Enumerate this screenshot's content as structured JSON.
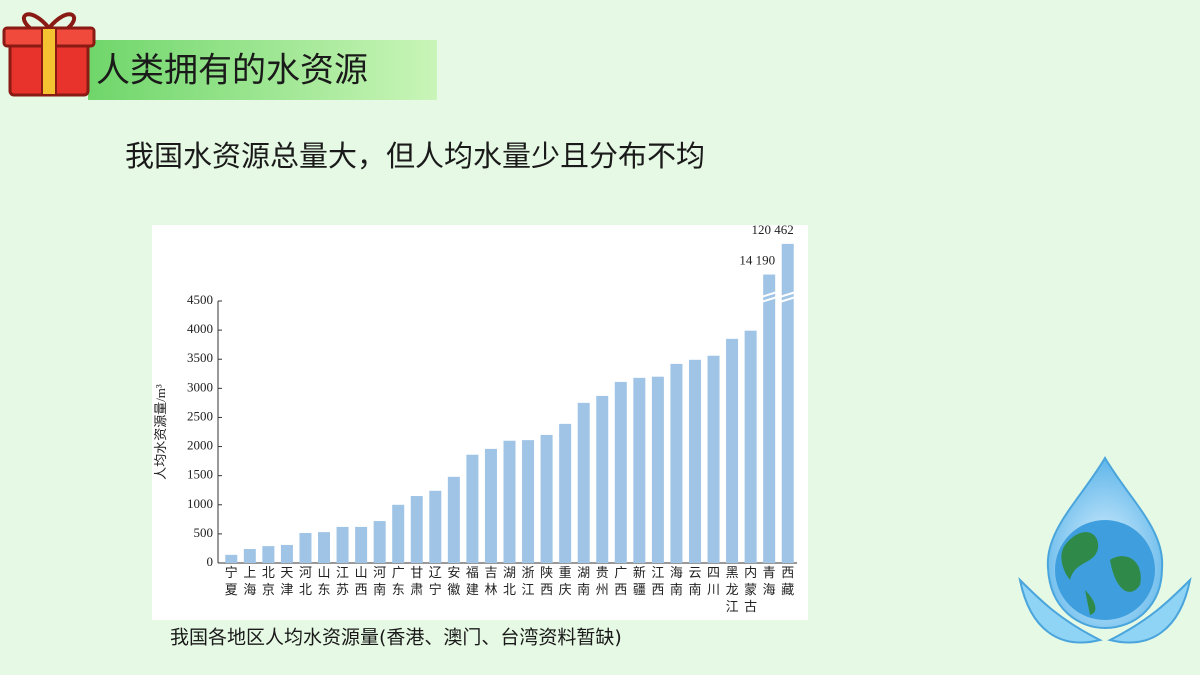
{
  "slide": {
    "title": "人类拥有的水资源",
    "subtitle": "我国水资源总量大，但人均水量少且分布不均",
    "caption": "我国各地区人均水资源量(香港、澳门、台湾资料暂缺)"
  },
  "chart_data": {
    "type": "bar",
    "y_label": "人均水资源量/m³",
    "color": "#9fc4e6",
    "categories": [
      "宁夏",
      "上海",
      "北京",
      "天津",
      "河北",
      "山东",
      "江苏",
      "山西",
      "河南",
      "广东",
      "甘肃",
      "辽宁",
      "安徽",
      "福建",
      "吉林",
      "湖北",
      "浙江",
      "陕西",
      "重庆",
      "湖南",
      "贵州",
      "广西",
      "新疆",
      "江西",
      "海南",
      "云南",
      "四川",
      "黑龙江",
      "内蒙古",
      "青海",
      "西藏"
    ],
    "values": [
      140,
      240,
      290,
      310,
      515,
      530,
      620,
      620,
      720,
      1000,
      1150,
      1240,
      1480,
      1860,
      1960,
      2100,
      2110,
      2200,
      2390,
      2750,
      2870,
      3110,
      3180,
      3200,
      3420,
      3490,
      3560,
      3850,
      3990,
      14190,
      120462
    ],
    "value_labels": [
      null,
      null,
      null,
      null,
      null,
      null,
      null,
      null,
      null,
      null,
      null,
      null,
      null,
      null,
      null,
      null,
      null,
      null,
      null,
      null,
      null,
      null,
      null,
      null,
      null,
      null,
      null,
      null,
      null,
      "14 190",
      "120 462"
    ],
    "ylim": [
      0,
      4500
    ],
    "yticks": [
      0,
      500,
      1000,
      1500,
      2000,
      2500,
      3000,
      3500,
      4000,
      4500
    ],
    "grid": false
  }
}
